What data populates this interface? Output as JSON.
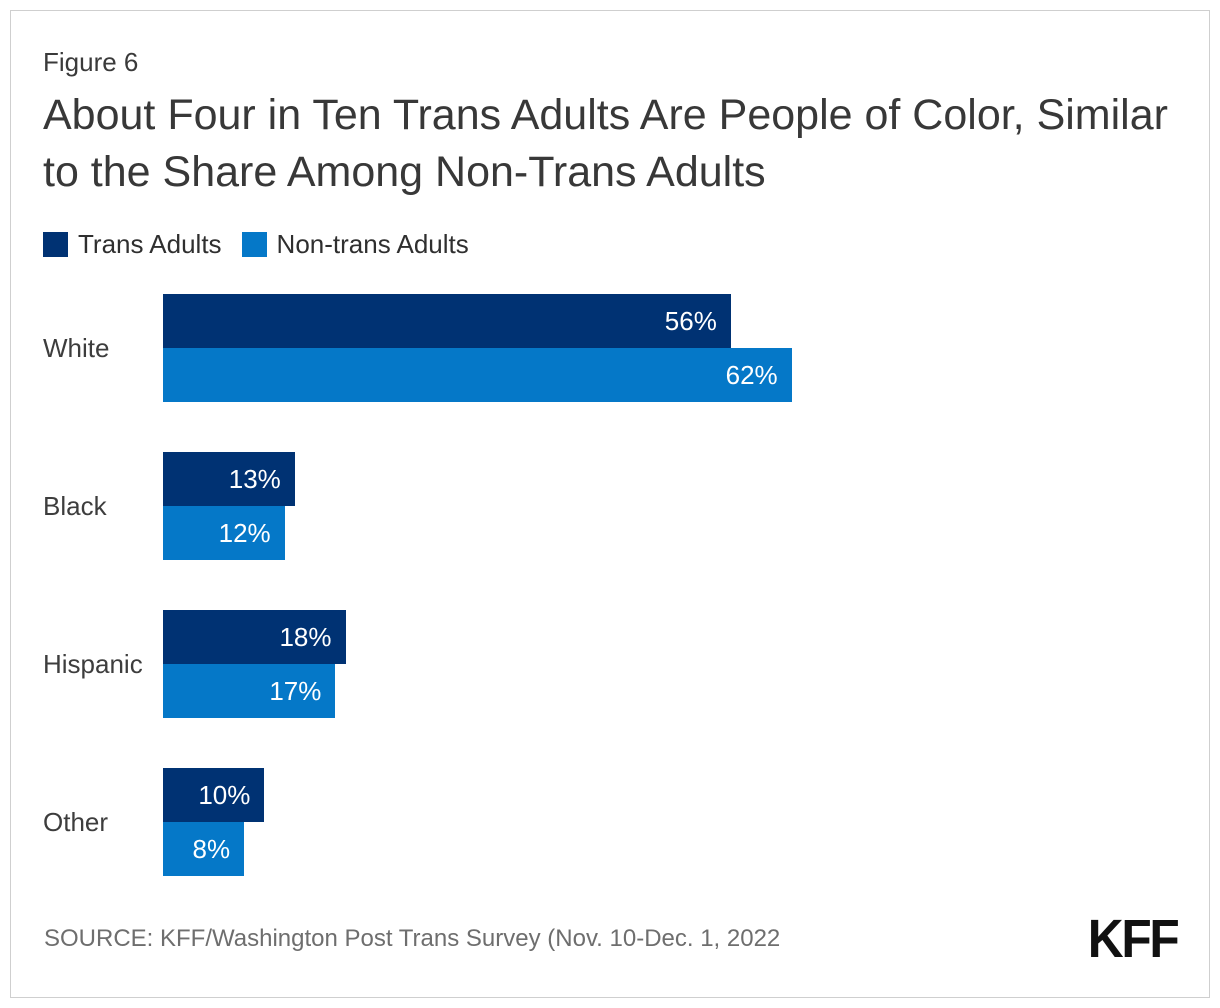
{
  "figure_label": "Figure 6",
  "title": "About Four in Ten Trans Adults Are People of Color, Similar to the Share Among Non-Trans Adults",
  "source": "SOURCE: KFF/Washington Post Trans Survey (Nov. 10-Dec. 1, 2022",
  "logo_text": "KFF",
  "colors": {
    "trans_adults": "#003273",
    "non_trans_adults": "#0578C8",
    "title_text": "#383838",
    "source_text": "#6e6e6e",
    "frame_border": "#cfcfcf",
    "bar_value_text": "#ffffff"
  },
  "chart_data": {
    "type": "bar",
    "orientation": "horizontal",
    "title": "About Four in Ten Trans Adults Are People of Color, Similar to the Share Among Non-Trans Adults",
    "categories": [
      "White",
      "Black",
      "Hispanic",
      "Other"
    ],
    "series": [
      {
        "name": "Trans Adults",
        "color": "#003273",
        "values": [
          56,
          13,
          18,
          10
        ]
      },
      {
        "name": "Non-trans Adults",
        "color": "#0578C8",
        "values": [
          62,
          12,
          17,
          8
        ]
      }
    ],
    "value_suffix": "%",
    "xlabel": "",
    "ylabel": "",
    "xlim": [
      0,
      100
    ],
    "grid": false,
    "legend_position": "top",
    "value_labels": "inside-end"
  }
}
